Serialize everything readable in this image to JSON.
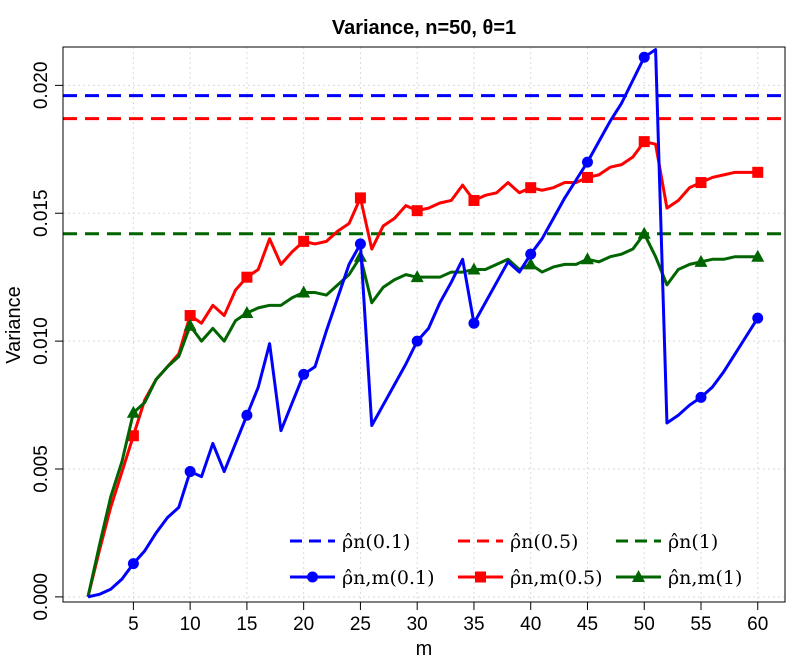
{
  "chart_data": {
    "type": "line",
    "title": "Variance, n=50, θ=1",
    "xlabel": "m",
    "ylabel": "Variance",
    "xlim": [
      -1.2,
      62.4
    ],
    "ylim": [
      -0.0002,
      0.0215
    ],
    "xticks": [
      5,
      10,
      15,
      20,
      25,
      30,
      35,
      40,
      45,
      50,
      55,
      60
    ],
    "xtick_labels": [
      "5",
      "10",
      "15",
      "20",
      "25",
      "30",
      "35",
      "40",
      "45",
      "50",
      "55",
      "60"
    ],
    "yticks": [
      0,
      0.005,
      0.01,
      0.015,
      0.02
    ],
    "ytick_labels": [
      "0.000",
      "0.005",
      "0.010",
      "0.015",
      "0.020"
    ],
    "grid": true,
    "legend_position": "bottom-right",
    "colors": {
      "blue": "#0000ff",
      "red": "#ff0000",
      "green": "#006400"
    },
    "hlines": [
      {
        "value": 0.0196,
        "color": "#0000ff",
        "legend": "ρ̂n(0.1)"
      },
      {
        "value": 0.0187,
        "color": "#ff0000",
        "legend": "ρ̂n(0.5)"
      },
      {
        "value": 0.0142,
        "color": "#006400",
        "legend": "ρ̂n(1)"
      }
    ],
    "series": [
      {
        "legend": "ρ̂n,m(0.1)",
        "color": "#0000ff",
        "marker": "circle",
        "x": [
          1,
          2,
          3,
          4,
          5,
          6,
          7,
          8,
          9,
          10,
          11,
          12,
          13,
          14,
          15,
          16,
          17,
          18,
          19,
          20,
          21,
          22,
          23,
          24,
          25,
          26,
          27,
          28,
          29,
          30,
          31,
          32,
          33,
          34,
          35,
          36,
          37,
          38,
          39,
          40,
          41,
          42,
          43,
          44,
          45,
          46,
          47,
          48,
          49,
          50,
          51,
          52,
          53,
          54,
          55,
          56,
          57,
          58,
          59,
          60
        ],
        "y": [
          0,
          0.0001,
          0.0003,
          0.0007,
          0.0013,
          0.0018,
          0.0025,
          0.0031,
          0.0035,
          0.0049,
          0.0047,
          0.006,
          0.0049,
          0.006,
          0.0071,
          0.0082,
          0.0099,
          0.0065,
          0.0076,
          0.0087,
          0.009,
          0.0104,
          0.0117,
          0.013,
          0.0138,
          0.0067,
          0.0075,
          0.0083,
          0.0091,
          0.01,
          0.0105,
          0.0115,
          0.0123,
          0.0132,
          0.0107,
          0.0115,
          0.0123,
          0.0131,
          0.0127,
          0.0134,
          0.014,
          0.0148,
          0.0156,
          0.0163,
          0.017,
          0.0178,
          0.0186,
          0.0193,
          0.0202,
          0.0211,
          0.0214,
          0.0068,
          0.0071,
          0.0075,
          0.0078,
          0.0082,
          0.0088,
          0.0095,
          0.0102,
          0.0109
        ]
      },
      {
        "legend": "ρ̂n,m(0.5)",
        "color": "#ff0000",
        "marker": "square",
        "x": [
          1,
          2,
          3,
          4,
          5,
          6,
          7,
          8,
          9,
          10,
          11,
          12,
          13,
          14,
          15,
          16,
          17,
          18,
          19,
          20,
          21,
          22,
          23,
          24,
          25,
          26,
          27,
          28,
          29,
          30,
          31,
          32,
          33,
          34,
          35,
          36,
          37,
          38,
          39,
          40,
          41,
          42,
          43,
          44,
          45,
          46,
          47,
          48,
          49,
          50,
          51,
          52,
          53,
          54,
          55,
          56,
          57,
          58,
          59,
          60
        ],
        "y": [
          0,
          0.0018,
          0.0035,
          0.0049,
          0.0063,
          0.0077,
          0.0085,
          0.009,
          0.0095,
          0.011,
          0.0107,
          0.0114,
          0.011,
          0.012,
          0.0125,
          0.0128,
          0.014,
          0.013,
          0.0135,
          0.0139,
          0.0138,
          0.0139,
          0.0143,
          0.0146,
          0.0156,
          0.0136,
          0.0145,
          0.0148,
          0.0153,
          0.0151,
          0.0152,
          0.0154,
          0.0155,
          0.0161,
          0.0155,
          0.0157,
          0.0158,
          0.0162,
          0.0158,
          0.016,
          0.0159,
          0.016,
          0.0162,
          0.0162,
          0.0164,
          0.0165,
          0.0168,
          0.0169,
          0.0172,
          0.0178,
          0.0177,
          0.0152,
          0.0155,
          0.016,
          0.0162,
          0.0164,
          0.0165,
          0.0166,
          0.0166,
          0.0166
        ]
      },
      {
        "legend": "ρ̂n,m(1)",
        "color": "#006400",
        "marker": "triangle",
        "x": [
          1,
          2,
          3,
          4,
          5,
          6,
          7,
          8,
          9,
          10,
          11,
          12,
          13,
          14,
          15,
          16,
          17,
          18,
          19,
          20,
          21,
          22,
          23,
          24,
          25,
          26,
          27,
          28,
          29,
          30,
          31,
          32,
          33,
          34,
          35,
          36,
          37,
          38,
          39,
          40,
          41,
          42,
          43,
          44,
          45,
          46,
          47,
          48,
          49,
          50,
          51,
          52,
          53,
          54,
          55,
          56,
          57,
          58,
          59,
          60
        ],
        "y": [
          0,
          0.002,
          0.0039,
          0.0053,
          0.0072,
          0.0076,
          0.0085,
          0.009,
          0.0094,
          0.0106,
          0.01,
          0.0105,
          0.01,
          0.0108,
          0.0111,
          0.0113,
          0.0114,
          0.0114,
          0.0117,
          0.0119,
          0.0119,
          0.0118,
          0.0122,
          0.0126,
          0.0133,
          0.0115,
          0.0121,
          0.0124,
          0.0126,
          0.0125,
          0.0125,
          0.0125,
          0.0127,
          0.0127,
          0.0128,
          0.0128,
          0.013,
          0.0132,
          0.0128,
          0.013,
          0.0127,
          0.0129,
          0.013,
          0.013,
          0.0132,
          0.0131,
          0.0133,
          0.0134,
          0.0136,
          0.0142,
          0.0133,
          0.0122,
          0.0128,
          0.013,
          0.0131,
          0.0132,
          0.0132,
          0.0133,
          0.0133,
          0.0133
        ]
      }
    ]
  }
}
